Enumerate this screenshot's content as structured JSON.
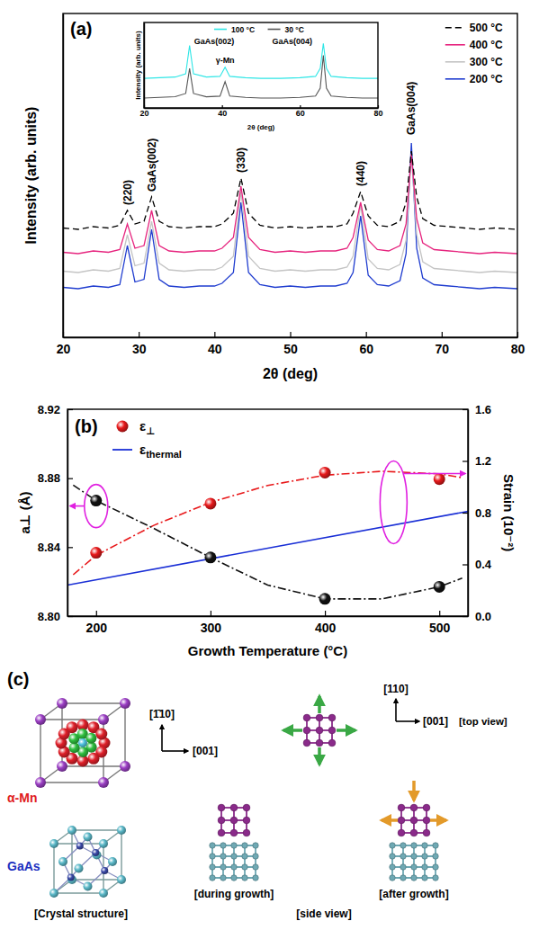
{
  "chart_data": [
    {
      "type": "line",
      "title": "(a)",
      "x_label": "2θ (deg)",
      "y_label": "Intensity (arb. units)",
      "x": [
        20,
        22,
        24,
        26,
        27.5,
        28.5,
        29.5,
        30.7,
        31.7,
        32.7,
        34,
        36,
        38,
        40,
        41,
        42.5,
        43.5,
        44.5,
        46,
        48,
        50,
        52,
        54,
        56,
        57.5,
        58.3,
        59.3,
        60.3,
        61.5,
        63,
        64.5,
        65.3,
        66.0,
        66.7,
        67.5,
        69,
        71,
        73,
        75,
        77,
        80
      ],
      "series": [
        {
          "name": "500 °C",
          "color": "#000000",
          "line_style": "dashed",
          "values": [
            40.5,
            40,
            41,
            40.5,
            41.5,
            47,
            42,
            43,
            52,
            43,
            41,
            40.5,
            41,
            41,
            42,
            46,
            59,
            46,
            41.5,
            40.5,
            41,
            40.5,
            41,
            41,
            42,
            46,
            54,
            45,
            41.5,
            41,
            43,
            50,
            69,
            52,
            44,
            41.5,
            41,
            40.5,
            40,
            40.5,
            40
          ]
        },
        {
          "name": "400 °C",
          "color": "#e6247e",
          "line_style": "solid",
          "values": [
            31.5,
            31,
            32,
            31.5,
            32.5,
            42,
            33,
            34,
            47,
            34,
            32,
            31.5,
            32,
            32,
            33,
            37,
            56,
            37,
            32.5,
            31.5,
            32,
            31.5,
            32,
            32,
            33,
            37,
            50,
            36,
            32.5,
            32,
            34,
            42,
            68,
            44,
            35,
            32.5,
            32,
            31.5,
            31,
            31.5,
            31
          ]
        },
        {
          "name": "300 °C",
          "color": "#c4c4c4",
          "line_style": "solid",
          "values": [
            24.5,
            24,
            25,
            24.5,
            25.5,
            38,
            26.5,
            27.5,
            43,
            27.5,
            25,
            24.5,
            25,
            25,
            26,
            30,
            54,
            30,
            25.5,
            24.5,
            25,
            24.5,
            25,
            25,
            26,
            30,
            49,
            29,
            25.5,
            25,
            27,
            36,
            68,
            38,
            28,
            25.5,
            25,
            24.5,
            24,
            24.5,
            24
          ]
        },
        {
          "name": "200 °C",
          "color": "#1f3ccf",
          "line_style": "solid",
          "values": [
            18.5,
            18,
            19,
            18.5,
            19.5,
            34,
            20.5,
            21.5,
            40,
            21.5,
            19,
            18.5,
            19,
            19,
            20,
            24,
            50,
            24,
            19.5,
            18.5,
            19,
            18.5,
            19,
            19,
            20,
            24,
            45,
            23,
            19.5,
            19,
            21,
            31,
            72,
            33,
            22,
            19.5,
            19,
            18.5,
            18,
            18.5,
            18
          ]
        }
      ],
      "xlim": [
        20,
        80
      ],
      "xticks": [
        20,
        30,
        40,
        50,
        60,
        70,
        80
      ],
      "ylim": [
        0,
        120
      ],
      "yticks": [],
      "tick_labels": "x",
      "legend": "upper right",
      "annotations": [
        {
          "text": "(220)",
          "x": 28.5,
          "y": 49
        },
        {
          "text": "GaAs(002)",
          "x": 31.7,
          "y": 54
        },
        {
          "text": "(330)",
          "x": 43.5,
          "y": 61
        },
        {
          "text": "(440)",
          "x": 59.3,
          "y": 56
        },
        {
          "text": "GaAs(004)",
          "x": 66.0,
          "y": 75
        }
      ]
    },
    {
      "type": "line",
      "x_label": "2θ (deg)",
      "y_label": "Intensity (arb. units)",
      "x": [
        20,
        24,
        28,
        30.7,
        31.7,
        32.7,
        36,
        39.5,
        40.8,
        42,
        46,
        50,
        55,
        60,
        64,
        65.2,
        66,
        66.8,
        68,
        72,
        76,
        80
      ],
      "series": [
        {
          "name": "100 °C",
          "color": "#2ee6e6",
          "line_style": "solid",
          "values": [
            45,
            46,
            47,
            52,
            95,
            52,
            47,
            48,
            62,
            48,
            46,
            45,
            45,
            46,
            48,
            60,
            98,
            60,
            48,
            46,
            45,
            45
          ]
        },
        {
          "name": "30 °C",
          "color": "#555555",
          "line_style": "solid",
          "values": [
            15,
            16,
            17,
            22,
            60,
            22,
            17,
            18,
            40,
            18,
            16,
            15,
            15,
            16,
            18,
            30,
            80,
            30,
            18,
            16,
            15,
            15
          ]
        }
      ],
      "xlim": [
        20,
        80
      ],
      "xticks": [
        20,
        40,
        60,
        80
      ],
      "ylim": [
        0,
        130
      ],
      "yticks": [],
      "tick_labels": "x",
      "legend": "upper center",
      "annotations": [
        {
          "text": "GaAs(002)",
          "x": 38,
          "y": 97
        },
        {
          "text": "γ-Mn",
          "x": 40.8,
          "y": 68
        },
        {
          "text": "GaAs(004)",
          "x": 58,
          "y": 97
        }
      ]
    },
    {
      "type": "scatter",
      "title": "(b)",
      "x_label": "Growth Temperature (°C)",
      "y_label": "a⊥ (Å)",
      "y2_label": "Strain (10⁻²)",
      "xlim": [
        175,
        525
      ],
      "xticks": [
        200,
        300,
        400,
        500
      ],
      "ylim": [
        8.8,
        8.92
      ],
      "yticks": [
        {
          "value": 8.8,
          "label": "8.80"
        },
        8.84,
        8.88,
        8.92
      ],
      "y2lim": [
        0,
        1.6
      ],
      "y2ticks": [
        {
          "value": 0,
          "label": "0.0"
        },
        0.4,
        0.8,
        1.2,
        1.6
      ],
      "legend": "upper left",
      "series": [
        {
          "name": "ε⊥",
          "type": "scatter",
          "marker": "circle",
          "color": "#e8191b",
          "axis": "y2",
          "x": [
            200,
            300,
            400,
            500
          ],
          "values": [
            0.49,
            0.87,
            1.11,
            1.06
          ]
        },
        {
          "type": "scatter",
          "marker": "circle",
          "color": "#111111",
          "axis": "y",
          "x": [
            200,
            300,
            400,
            500
          ],
          "values": [
            8.867,
            8.834,
            8.81,
            8.817
          ]
        },
        {
          "type": "line",
          "line_style": "dashdot",
          "color": "#e8191b",
          "axis": "y2",
          "x": [
            180,
            200,
            250,
            300,
            350,
            400,
            450,
            500,
            520
          ],
          "values": [
            0.32,
            0.47,
            0.7,
            0.88,
            1.01,
            1.09,
            1.12,
            1.1,
            1.07
          ]
        },
        {
          "type": "line",
          "line_style": "dashdot",
          "color": "#111111",
          "axis": "y",
          "x": [
            180,
            200,
            250,
            300,
            350,
            400,
            450,
            500,
            520
          ],
          "values": [
            8.876,
            8.867,
            8.851,
            8.834,
            8.818,
            8.81,
            8.81,
            8.817,
            8.822
          ]
        },
        {
          "name": "εthermal",
          "type": "line",
          "line_style": "solid",
          "color": "#1a2fd6",
          "axis": "y2",
          "x": [
            175,
            525
          ],
          "values": [
            0.24,
            0.81
          ]
        }
      ]
    }
  ],
  "diagram": {
    "label": "(c)",
    "crystal_structure": {
      "direction_up": "[1̄10]",
      "direction_right": "[001]",
      "upper_crystal": "α-Mn",
      "lower_crystal": "GaAs",
      "caption": "[Crystal structure]"
    },
    "top_view": {
      "direction_up": "[110]",
      "direction_right": "[001]",
      "caption": "[top view]"
    },
    "side_view": {
      "during": "[during growth]",
      "after": "[after growth]",
      "caption": "[side view]"
    }
  }
}
